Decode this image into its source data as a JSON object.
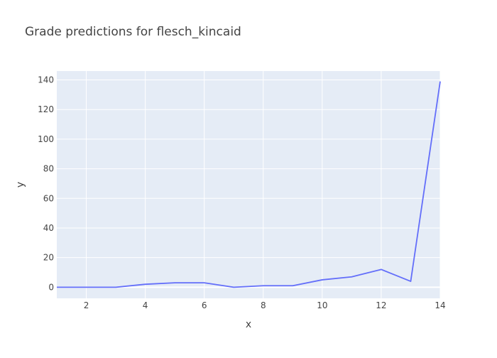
{
  "chart_data": {
    "type": "line",
    "title": "Grade predictions for flesch_kincaid",
    "xlabel": "x",
    "ylabel": "y",
    "xlim": [
      1,
      14
    ],
    "ylim": [
      -7.5,
      146
    ],
    "x_ticks": [
      2,
      4,
      6,
      8,
      10,
      12,
      14
    ],
    "y_ticks": [
      0,
      20,
      40,
      60,
      80,
      100,
      120,
      140
    ],
    "grid": true,
    "series": [
      {
        "color": "#636efa",
        "x": [
          1,
          2,
          3,
          4,
          5,
          6,
          7,
          8,
          9,
          10,
          11,
          12,
          13,
          14
        ],
        "y": [
          0,
          0,
          0,
          2,
          3,
          3,
          0,
          1,
          1,
          5,
          7,
          12,
          4,
          139
        ]
      }
    ]
  },
  "colors": {
    "plot_background": "#e5ecf6",
    "grid": "#ffffff",
    "text": "#444444",
    "title": "#444444"
  }
}
